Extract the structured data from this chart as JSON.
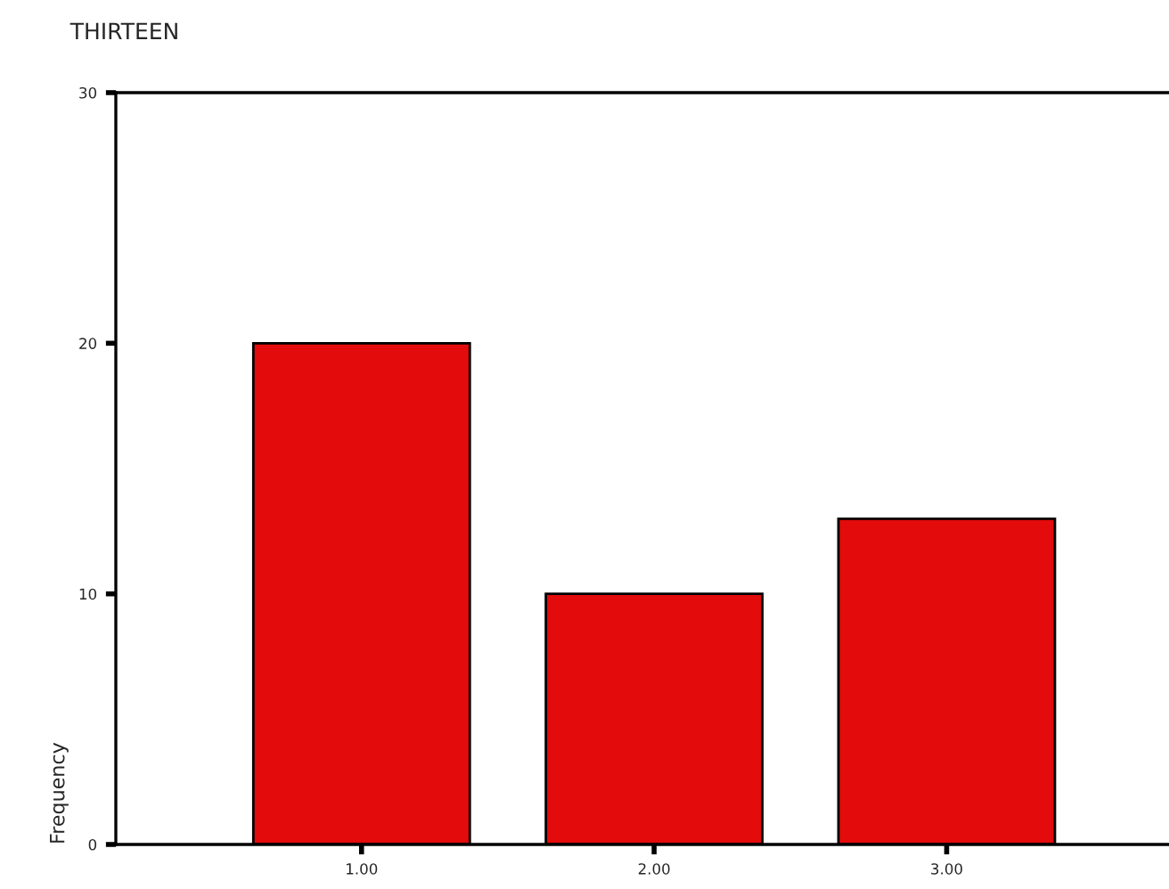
{
  "chart_data": {
    "type": "bar",
    "title": "THIRTEEN",
    "ylabel": "Frequency",
    "categories": [
      "1.00",
      "2.00",
      "3.00"
    ],
    "values": [
      20,
      10,
      13
    ],
    "color": "#e30b0b",
    "ylim": [
      0,
      30
    ],
    "yticks": [
      0,
      10,
      20,
      30
    ],
    "grid": false,
    "legend": false
  }
}
